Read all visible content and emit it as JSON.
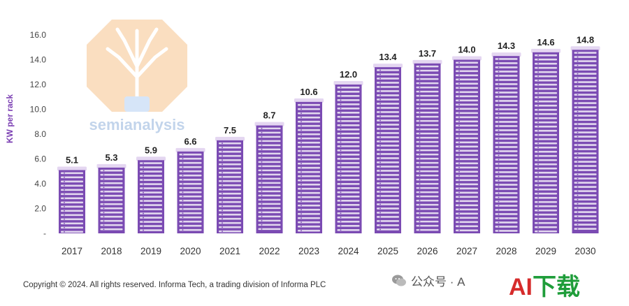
{
  "chart_data": {
    "type": "bar",
    "ylabel": "KW per rack",
    "xlabel": "",
    "categories": [
      "2017",
      "2018",
      "2019",
      "2020",
      "2021",
      "2022",
      "2023",
      "2024",
      "2025",
      "2026",
      "2027",
      "2028",
      "2029",
      "2030"
    ],
    "values": [
      5.1,
      5.3,
      5.9,
      6.6,
      7.5,
      8.7,
      10.6,
      12.0,
      13.4,
      13.7,
      14.0,
      14.3,
      14.6,
      14.8
    ],
    "value_labels": [
      "5.1",
      "5.3",
      "5.9",
      "6.6",
      "7.5",
      "8.7",
      "10.6",
      "12.0",
      "13.4",
      "13.7",
      "14.0",
      "14.3",
      "14.6",
      "14.8"
    ],
    "y_ticks": [
      0,
      2,
      4,
      6,
      8,
      10,
      12,
      14,
      16
    ],
    "y_tick_labels": [
      "-",
      "2.0",
      "4.0",
      "6.0",
      "8.0",
      "10.0",
      "12.0",
      "14.0",
      "16.0"
    ],
    "ylim": [
      0,
      16
    ],
    "grid": false,
    "legend": false,
    "bar_style": "server-rack icons",
    "colors": {
      "bar": "#7b4bb3",
      "bar_top": "#e4d6f1",
      "label": "#222222"
    }
  },
  "watermark": {
    "text": "semianalysis"
  },
  "footer": {
    "copyright": "Copyright © 2024. All rights reserved. Informa Tech, a trading division of Informa PLC",
    "wechat_text": "公众号 · A",
    "brand_ai": "AI",
    "brand_rest": "下载"
  }
}
